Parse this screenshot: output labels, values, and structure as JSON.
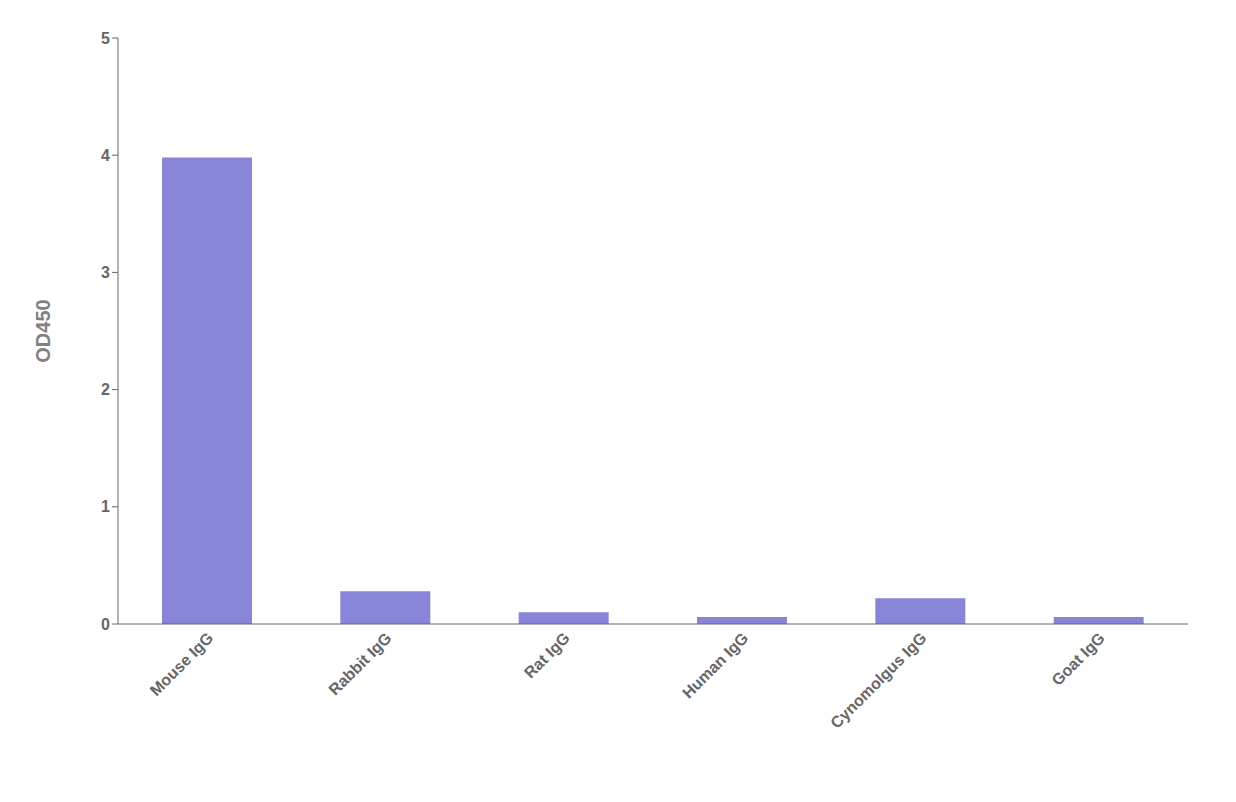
{
  "chart_data": {
    "type": "bar",
    "ylabel": "OD450",
    "categories": [
      "Mouse IgG",
      "Rabbit IgG",
      "Rat IgG",
      "Human IgG",
      "Cynomolgus IgG",
      "Goat IgG"
    ],
    "values": [
      3.98,
      0.28,
      0.1,
      0.06,
      0.22,
      0.06
    ],
    "ylim": [
      0,
      5
    ],
    "yticks": [
      0,
      1,
      2,
      3,
      4,
      5
    ],
    "color": "#8884d8",
    "grid": false
  }
}
